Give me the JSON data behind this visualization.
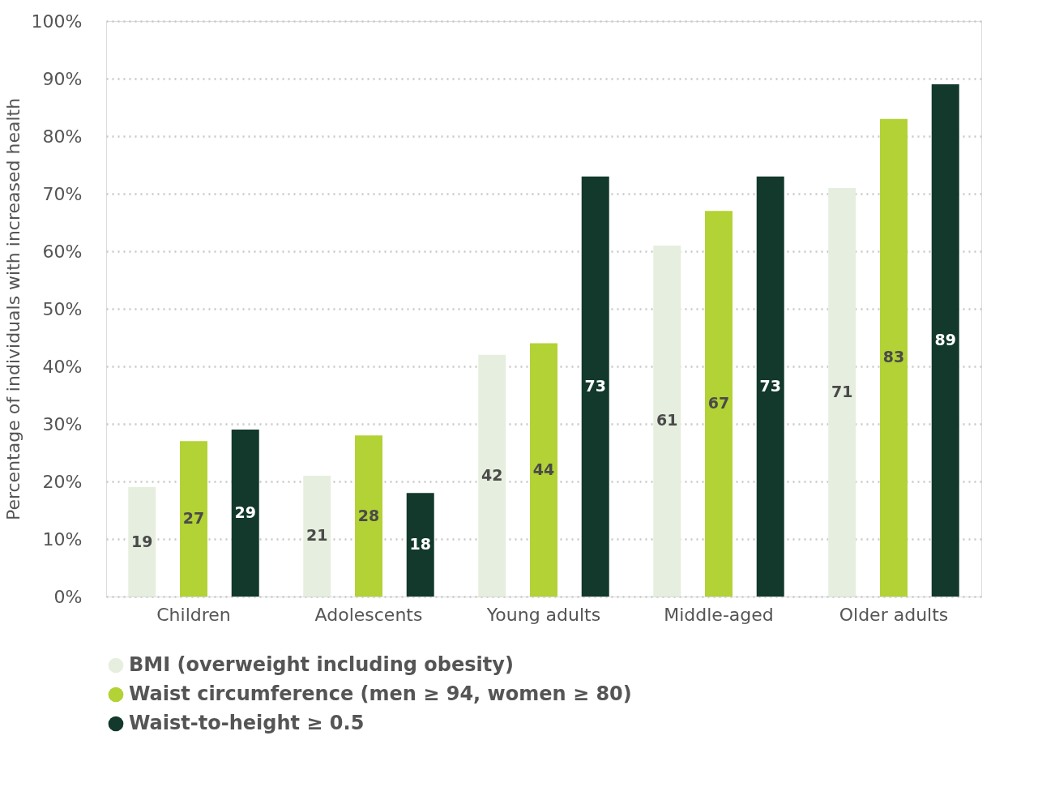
{
  "chart_data": {
    "type": "bar",
    "ylabel": "Percentage of individuals with increased health",
    "categories": [
      "Children",
      "Adolescents",
      "Young adults",
      "Middle-aged",
      "Older adults"
    ],
    "series": [
      {
        "name": "BMI (overweight including obesity)",
        "color": "#e6efdf",
        "values": [
          19,
          21,
          42,
          61,
          71
        ]
      },
      {
        "name": "Waist circumference (men ≥ 94, women ≥ 80)",
        "color": "#b2d235",
        "values": [
          27,
          28,
          44,
          67,
          83
        ]
      },
      {
        "name": "Waist-to-height ≥ 0.5",
        "color": "#12392b",
        "values": [
          29,
          18,
          73,
          73,
          89
        ]
      }
    ],
    "ylim": [
      0,
      100
    ],
    "yticks": [
      {
        "value": 0,
        "label": "0%"
      },
      {
        "value": 10,
        "label": "10%"
      },
      {
        "value": 20,
        "label": "20%"
      },
      {
        "value": 30,
        "label": "30%"
      },
      {
        "value": 40,
        "label": "40%"
      },
      {
        "value": 50,
        "label": "50%"
      },
      {
        "value": 60,
        "label": "60%"
      },
      {
        "value": 70,
        "label": "70%"
      },
      {
        "value": 80,
        "label": "80%"
      },
      {
        "value": 90,
        "label": "90%"
      },
      {
        "value": 100,
        "label": "100%"
      }
    ],
    "grid": "y",
    "legend": "bottom",
    "data_labels": true
  }
}
